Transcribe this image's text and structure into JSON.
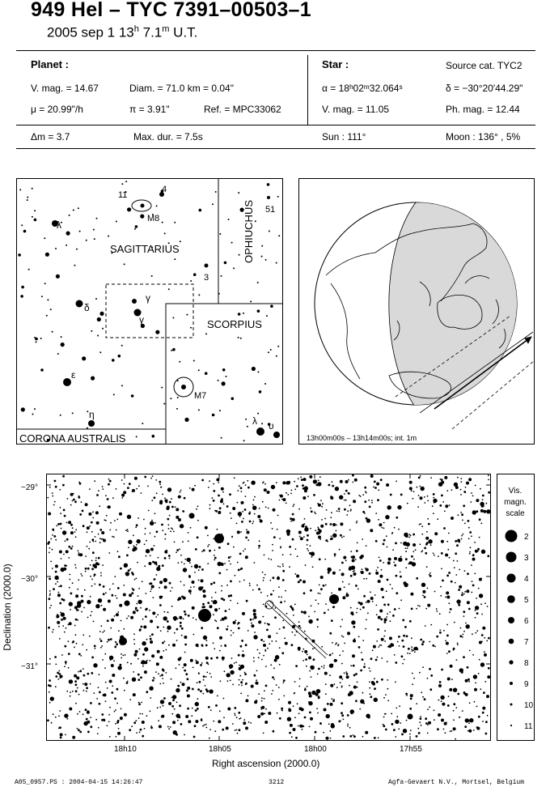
{
  "header": {
    "title": "949 Hel  –  TYC 7391–00503–1",
    "subtitle": "2005 sep  1  13",
    "sub_h": "h",
    "sub_min": " 7.1",
    "sub_m": "m",
    "sub_ut": " U.T."
  },
  "planet": {
    "heading": "Planet :",
    "vmag": "V. mag. = 14.67",
    "diam": "Diam. = 71.0 km = 0.04\"",
    "mu": "μ =  20.99\"/h",
    "pi": "π =  3.91\"",
    "ref": "Ref. = MPC33062"
  },
  "star": {
    "heading": "Star :",
    "source": "Source cat.  TYC2",
    "alpha": "α = 18ʰ02ᵐ32.064ˢ",
    "delta": "δ = −30°20′44.29\"",
    "vmag": "V. mag. = 11.05",
    "phmag": "Ph. mag. = 12.44"
  },
  "summary": {
    "dm": "Δm = 3.7",
    "maxdur": "Max. dur. = 7.5s",
    "sun": "Sun : 111°",
    "moon": "Moon : 136° ,  5%"
  },
  "finder": {
    "constellations": [
      "SAGITTARIUS",
      "OPHIUCHUS",
      "SCORPIUS",
      "CORONA AUSTRALIS"
    ],
    "labels": [
      "λ",
      "δ",
      "γ",
      "γ",
      "ε",
      "η",
      "λ",
      "υ",
      "M8",
      "M7",
      "11",
      "4",
      "3",
      "51"
    ]
  },
  "globe": {
    "caption": "13h00m00s – 13h14m00s; int.  1m"
  },
  "skychart": {
    "dec_ticks": [
      "−29°",
      "−30°",
      "−31°"
    ],
    "ra_ticks": [
      "18h10",
      "18h05",
      "18h00",
      "17h55"
    ],
    "xlabel": "Right ascension (2000.0)",
    "ylabel": "Declination (2000.0)",
    "scale_title": [
      "Vis.",
      "magn.",
      "scale"
    ],
    "scale_mags": [
      "2",
      "3",
      "4",
      "5",
      "6",
      "7",
      "8",
      "9",
      "10",
      "11"
    ]
  },
  "footer": {
    "left": "A05_0957.PS : 2004-04-15 14:26:47",
    "center": "3212",
    "right": "Agfa-Gevaert N.V., Mortsel, Belgium"
  }
}
